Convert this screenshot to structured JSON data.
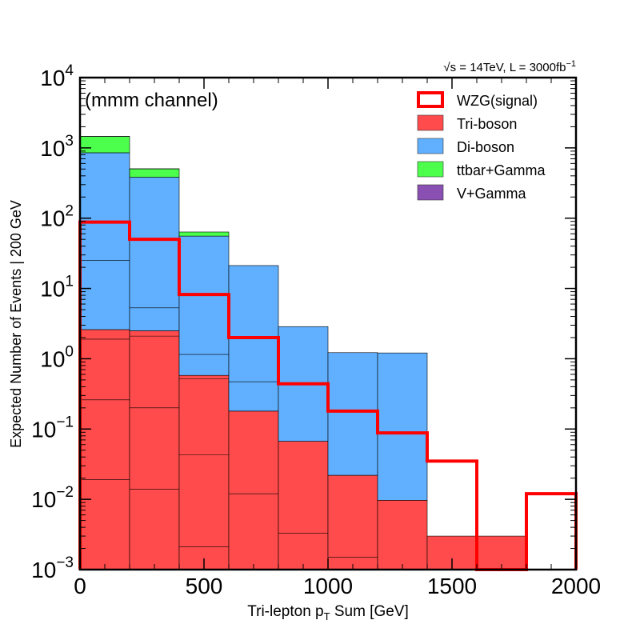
{
  "chart_data": {
    "type": "bar",
    "stacked": true,
    "histogram": true,
    "bin_edges": [
      0,
      200,
      400,
      600,
      800,
      1000,
      1200,
      1400,
      1600,
      1800,
      2000
    ],
    "xlabel_main": "Tri-lepton p",
    "xlabel_sub": "T",
    "xlabel_rest": " Sum [GeV]",
    "ylabel": "Expected Number of Events | 200 GeV",
    "xlim": [
      0,
      2000
    ],
    "ylim": [
      0.001,
      10000
    ],
    "yscale": "log",
    "xticks": [
      "0",
      "500",
      "1000",
      "1500",
      "2000"
    ],
    "xtick_values": [
      0,
      500,
      1000,
      1500,
      2000
    ],
    "yticks": [
      {
        "base": "10",
        "exp": "−3",
        "value": 0.001
      },
      {
        "base": "10",
        "exp": "−2",
        "value": 0.01
      },
      {
        "base": "10",
        "exp": "−1",
        "value": 0.1
      },
      {
        "base": "10",
        "exp": "0",
        "value": 1
      },
      {
        "base": "10",
        "exp": "1",
        "value": 10
      },
      {
        "base": "10",
        "exp": "2",
        "value": 100
      },
      {
        "base": "10",
        "exp": "3",
        "value": 1000
      },
      {
        "base": "10",
        "exp": "4",
        "value": 10000
      }
    ],
    "annotation_channel": "(mmm channel)",
    "annotation_lumi": "√s = 14TeV, L = 3000fb",
    "annotation_lumi_sup": "−1",
    "legend_position": "top-right",
    "stack_series": [
      {
        "name": "Tri-boson",
        "color": "#ff4b4b",
        "values": [
          2.6,
          2.5,
          0.58,
          0.18,
          0.067,
          0.022,
          0.0097,
          0.003,
          0.003,
          0
        ]
      },
      {
        "name": "Di-boson",
        "color": "#60b0ff",
        "values": [
          850,
          380,
          55,
          21,
          2.8,
          1.2,
          1.2,
          0,
          0,
          0
        ]
      },
      {
        "name": "ttbar+Gamma",
        "color": "#4cff4c",
        "values": [
          600,
          120,
          8,
          0,
          0,
          0,
          0,
          0,
          0,
          0
        ]
      },
      {
        "name": "V+Gamma",
        "color": "#8a4fb2",
        "values": [
          5,
          2,
          0,
          0,
          0,
          0,
          0,
          0,
          0,
          0
        ]
      }
    ],
    "component_lines": [
      [
        1.9,
        2.1,
        0.52
      ],
      [
        0.26,
        0.2,
        0.043
      ],
      [
        0.019,
        0.014,
        0.0021,
        0.012,
        0.0033,
        0.0015
      ],
      [
        25.0,
        5.3,
        1.15,
        0.47
      ]
    ],
    "signal": {
      "name": "WZG(signal)",
      "color": "#ff0000",
      "values": [
        88,
        50,
        8.2,
        2.0,
        0.44,
        0.18,
        0.088,
        0.035,
        0,
        0.012
      ]
    }
  }
}
